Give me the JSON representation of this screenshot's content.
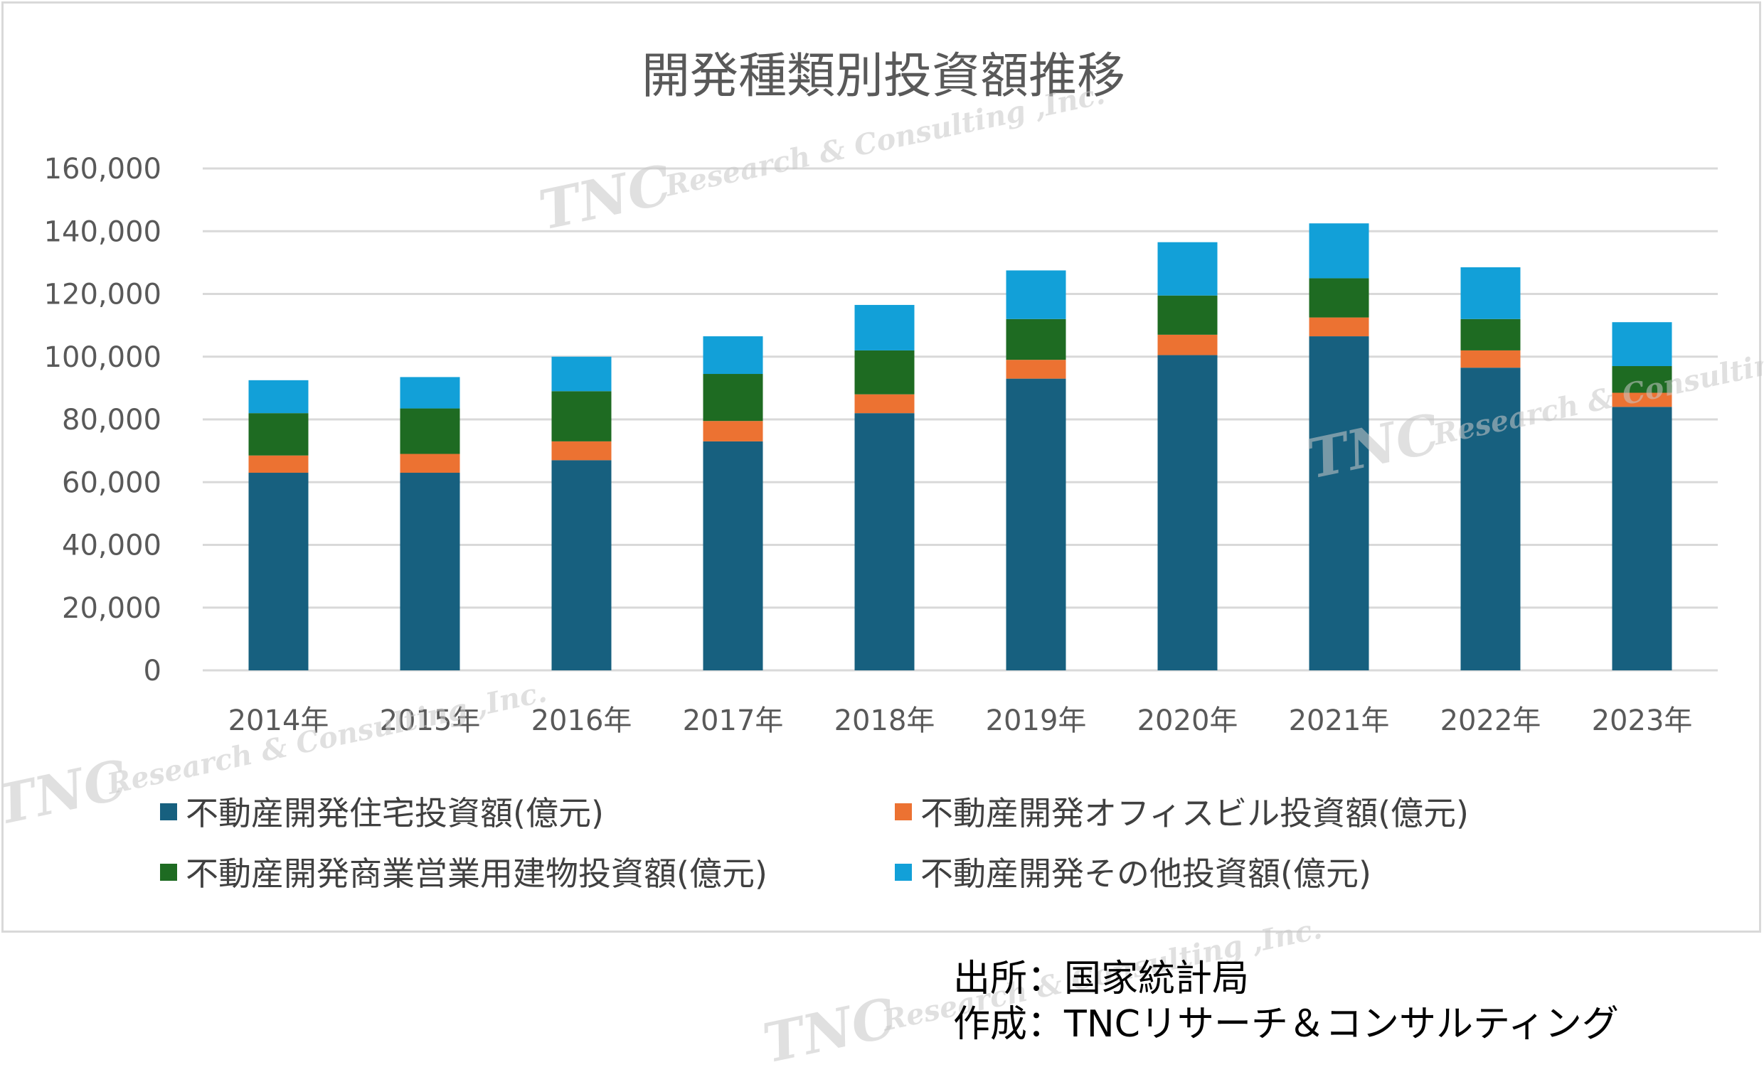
{
  "chart_data": {
    "type": "bar",
    "stacked": true,
    "title": "開発種類別投資額推移",
    "categories": [
      "2014年",
      "2015年",
      "2016年",
      "2017年",
      "2018年",
      "2019年",
      "2020年",
      "2021年",
      "2022年",
      "2023年"
    ],
    "y_ticks": [
      "0",
      "20,000",
      "40,000",
      "60,000",
      "80,000",
      "100,000",
      "120,000",
      "140,000",
      "160,000"
    ],
    "ylim": [
      0,
      160000
    ],
    "grid": true,
    "legend_position": "bottom",
    "series": [
      {
        "name": "不動産開発住宅投資額(億元)",
        "color": "#17607f",
        "values": [
          63000,
          63000,
          67000,
          73000,
          82000,
          93000,
          100500,
          106500,
          96500,
          84000
        ]
      },
      {
        "name": "不動産開発オフィスビル投資額(億元)",
        "color": "#ec7232",
        "values": [
          5500,
          6000,
          6000,
          6500,
          6000,
          6000,
          6500,
          6000,
          5500,
          4500
        ]
      },
      {
        "name": "不動産開発商業営業用建物投資額(億元)",
        "color": "#1e6b22",
        "values": [
          13500,
          14500,
          16000,
          15000,
          14000,
          13000,
          12500,
          12500,
          10000,
          8500
        ]
      },
      {
        "name": "不動産開発その他投資額(億元)",
        "color": "#12a0d8",
        "values": [
          10500,
          10000,
          11000,
          12000,
          14500,
          15500,
          17000,
          17500,
          16500,
          14000
        ]
      }
    ]
  },
  "watermark": {
    "main": "TNC",
    "sub": "Research & Consulting ,Inc."
  },
  "source": {
    "line1": "出所：国家統計局",
    "line2": "作成：TNCリサーチ＆コンサルティング"
  }
}
